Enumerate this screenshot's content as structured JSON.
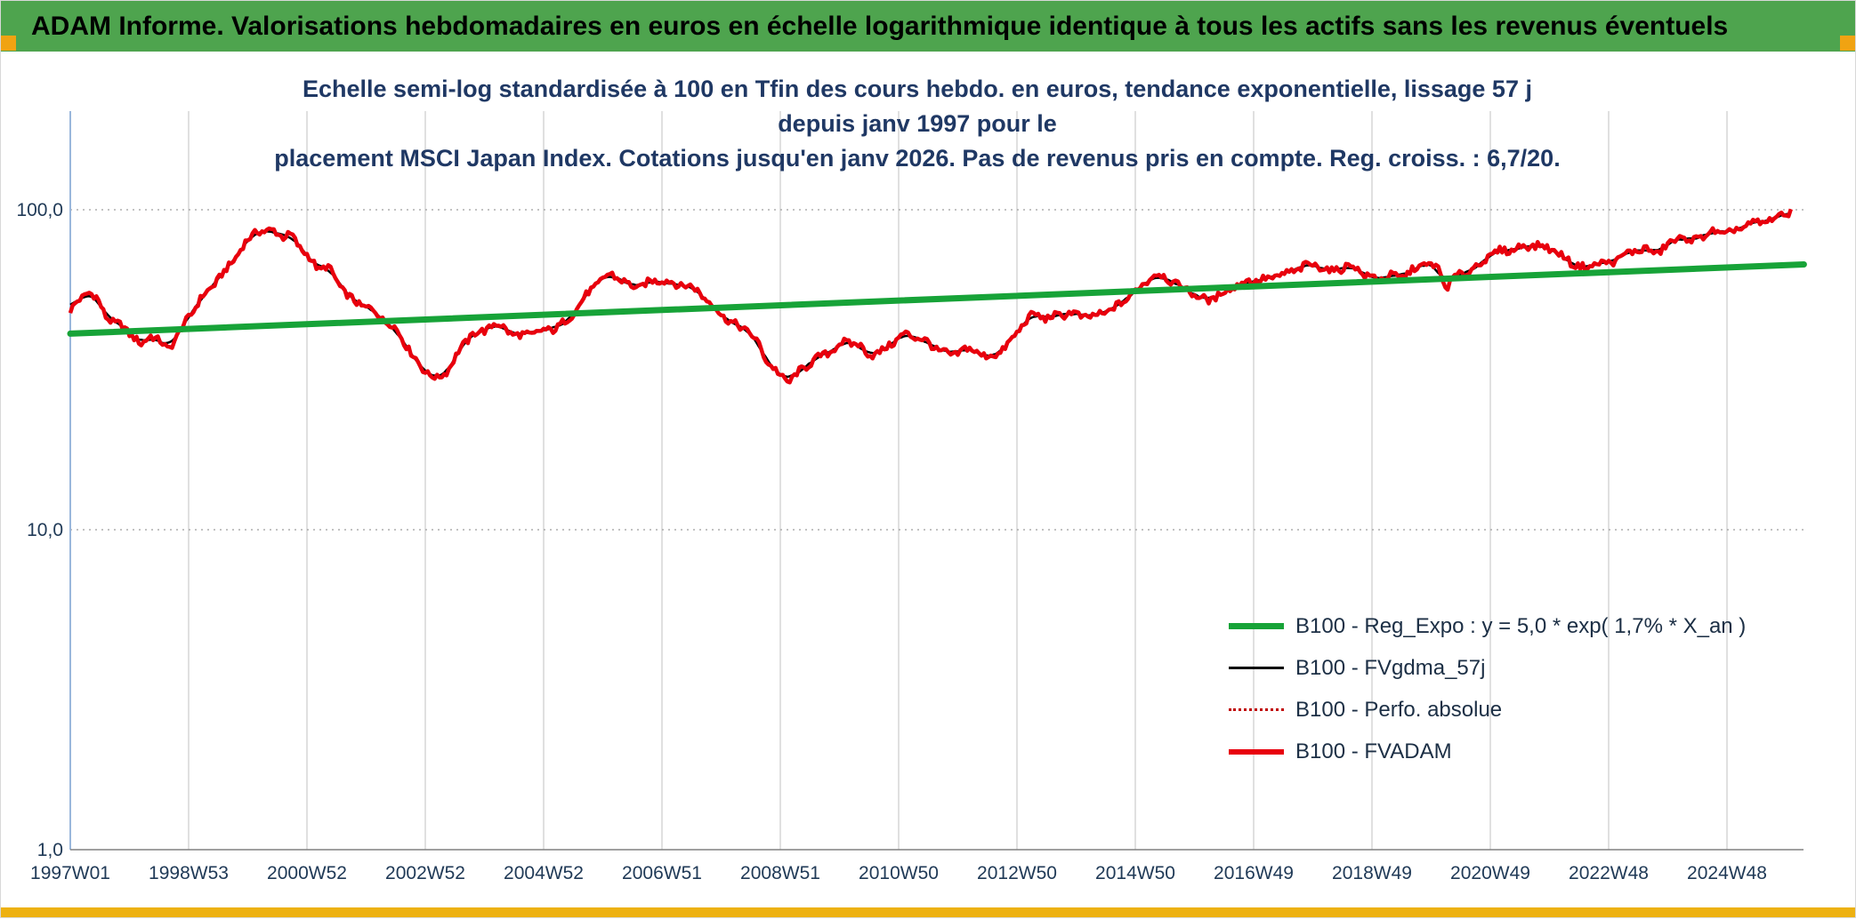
{
  "header": {
    "title": "ADAM Informe. Valorisations hebdomadaires en euros en échelle logarithmique identique à tous les actifs sans les revenus éventuels",
    "bg_color": "#4ea44e",
    "accent_color": "#f0a312"
  },
  "footer": {
    "accent_color": "#edb111"
  },
  "chart_data": {
    "type": "line",
    "title_line1": "Echelle semi-log standardisée à 100 en Tfin des cours hebdo. en euros, tendance exponentielle, lissage 57 j depuis janv 1997 pour le",
    "title_line2": "placement MSCI Japan Index. Cotations jusqu'en janv 2026. Pas de revenus pris en compte. Reg. croiss. : 6,7/20.",
    "x_axis": {
      "tick_labels": [
        "1997W01",
        "1998W53",
        "2000W52",
        "2002W52",
        "2004W52",
        "2006W51",
        "2008W51",
        "2010W50",
        "2012W50",
        "2014W50",
        "2016W49",
        "2018W49",
        "2020W49",
        "2022W48",
        "2024W48"
      ],
      "tick_years": [
        1997,
        1999,
        2001,
        2003,
        2005,
        2007,
        2009,
        2011,
        2013,
        2015,
        2017,
        2019,
        2021,
        2023,
        2025
      ]
    },
    "y_axis": {
      "scale": "log",
      "tick_labels": [
        "100,0",
        "10,0",
        "1,0"
      ],
      "tick_values": [
        100,
        10,
        1
      ],
      "range": [
        1,
        200
      ]
    },
    "x_range": [
      1997.0,
      2026.4
    ],
    "grid": {
      "vertical": true,
      "horizontal_dashed_at": [
        100,
        10
      ]
    },
    "legend_position": "bottom-right-inside",
    "series": [
      {
        "name": "B100 - Reg_Expo : y = 5,0 * exp( 1,7% *  X_an )",
        "type": "trend",
        "color": "#17a338",
        "width": 7,
        "points": [
          [
            1997.0,
            41.0
          ],
          [
            2026.3,
            67.5
          ]
        ]
      },
      {
        "name": "B100 - FVgdma_57j",
        "type": "smoothed",
        "color": "#000000",
        "width": 2.5,
        "derived_from": "B100 - FVADAM",
        "window_days": 57
      },
      {
        "name": "B100 - Perfo. absolue",
        "type": "dotted",
        "color": "#c00000",
        "width": 2,
        "same_as": "B100 - FVADAM"
      },
      {
        "name": "B100 - FVADAM",
        "type": "main",
        "color": "#e8000d",
        "width": 4.5,
        "points": [
          [
            1997.0,
            48
          ],
          [
            1997.15,
            52
          ],
          [
            1997.3,
            56
          ],
          [
            1997.45,
            53
          ],
          [
            1997.6,
            47
          ],
          [
            1997.75,
            44
          ],
          [
            1997.9,
            43
          ],
          [
            1998.05,
            40
          ],
          [
            1998.2,
            37.5
          ],
          [
            1998.35,
            41
          ],
          [
            1998.5,
            39
          ],
          [
            1998.65,
            37
          ],
          [
            1998.8,
            40
          ],
          [
            1999.0,
            46
          ],
          [
            1999.2,
            52
          ],
          [
            1999.4,
            58
          ],
          [
            1999.6,
            64
          ],
          [
            1999.8,
            72
          ],
          [
            2000.0,
            80
          ],
          [
            2000.15,
            86
          ],
          [
            2000.3,
            84
          ],
          [
            2000.45,
            87
          ],
          [
            2000.6,
            82
          ],
          [
            2000.75,
            84
          ],
          [
            2000.9,
            76
          ],
          [
            2001.05,
            70
          ],
          [
            2001.2,
            65
          ],
          [
            2001.35,
            66
          ],
          [
            2001.5,
            60
          ],
          [
            2001.65,
            55
          ],
          [
            2001.8,
            52
          ],
          [
            2002.0,
            50
          ],
          [
            2002.15,
            48
          ],
          [
            2002.3,
            45
          ],
          [
            2002.45,
            43
          ],
          [
            2002.6,
            40
          ],
          [
            2002.75,
            36
          ],
          [
            2002.9,
            33
          ],
          [
            2003.05,
            31
          ],
          [
            2003.2,
            29.5
          ],
          [
            2003.35,
            31
          ],
          [
            2003.5,
            34
          ],
          [
            2003.65,
            38
          ],
          [
            2003.8,
            41
          ],
          [
            2004.0,
            42
          ],
          [
            2004.15,
            44.5
          ],
          [
            2004.3,
            43
          ],
          [
            2004.45,
            41
          ],
          [
            2004.6,
            40
          ],
          [
            2004.8,
            41
          ],
          [
            2005.0,
            42
          ],
          [
            2005.2,
            43
          ],
          [
            2005.4,
            45
          ],
          [
            2005.6,
            50
          ],
          [
            2005.8,
            56
          ],
          [
            2006.0,
            61
          ],
          [
            2006.15,
            63.5
          ],
          [
            2006.3,
            61
          ],
          [
            2006.45,
            58
          ],
          [
            2006.6,
            57
          ],
          [
            2006.8,
            59
          ],
          [
            2007.0,
            60.5
          ],
          [
            2007.2,
            59
          ],
          [
            2007.4,
            58.5
          ],
          [
            2007.6,
            56
          ],
          [
            2007.8,
            51
          ],
          [
            2008.0,
            47
          ],
          [
            2008.2,
            44
          ],
          [
            2008.4,
            43
          ],
          [
            2008.6,
            39
          ],
          [
            2008.8,
            33
          ],
          [
            2009.0,
            30
          ],
          [
            2009.15,
            29
          ],
          [
            2009.3,
            31
          ],
          [
            2009.5,
            33.5
          ],
          [
            2009.7,
            35
          ],
          [
            2009.9,
            36.5
          ],
          [
            2010.1,
            38.5
          ],
          [
            2010.3,
            38
          ],
          [
            2010.5,
            35.5
          ],
          [
            2010.7,
            36
          ],
          [
            2010.9,
            38.5
          ],
          [
            2011.1,
            40.5
          ],
          [
            2011.3,
            40
          ],
          [
            2011.5,
            38.5
          ],
          [
            2011.7,
            36.5
          ],
          [
            2011.9,
            35
          ],
          [
            2012.1,
            36.5
          ],
          [
            2012.3,
            36
          ],
          [
            2012.5,
            34.5
          ],
          [
            2012.7,
            36
          ],
          [
            2012.9,
            39
          ],
          [
            2013.1,
            44
          ],
          [
            2013.3,
            47
          ],
          [
            2013.5,
            45.5
          ],
          [
            2013.7,
            47
          ],
          [
            2013.9,
            48
          ],
          [
            2014.1,
            46.5
          ],
          [
            2014.3,
            46
          ],
          [
            2014.5,
            47.5
          ],
          [
            2014.7,
            50
          ],
          [
            2014.9,
            54
          ],
          [
            2015.1,
            58
          ],
          [
            2015.3,
            62.5
          ],
          [
            2015.5,
            61.5
          ],
          [
            2015.7,
            58
          ],
          [
            2015.9,
            56.5
          ],
          [
            2016.1,
            53
          ],
          [
            2016.3,
            52.5
          ],
          [
            2016.5,
            55
          ],
          [
            2016.7,
            57.5
          ],
          [
            2016.9,
            60
          ],
          [
            2017.1,
            60.5
          ],
          [
            2017.3,
            61.5
          ],
          [
            2017.5,
            62.5
          ],
          [
            2017.7,
            64
          ],
          [
            2017.9,
            67
          ],
          [
            2018.1,
            67.5
          ],
          [
            2018.3,
            64.5
          ],
          [
            2018.5,
            66
          ],
          [
            2018.7,
            66.5
          ],
          [
            2018.9,
            61.5
          ],
          [
            2019.1,
            61
          ],
          [
            2019.3,
            62.5
          ],
          [
            2019.5,
            62
          ],
          [
            2019.7,
            64.5
          ],
          [
            2019.9,
            67.5
          ],
          [
            2020.1,
            66
          ],
          [
            2020.25,
            57.5
          ],
          [
            2020.4,
            62
          ],
          [
            2020.6,
            64
          ],
          [
            2020.8,
            67
          ],
          [
            2021.0,
            71.5
          ],
          [
            2021.2,
            74.5
          ],
          [
            2021.4,
            75.5
          ],
          [
            2021.6,
            78
          ],
          [
            2021.8,
            77
          ],
          [
            2022.0,
            75.5
          ],
          [
            2022.2,
            71.5
          ],
          [
            2022.4,
            68
          ],
          [
            2022.6,
            66
          ],
          [
            2022.8,
            68.5
          ],
          [
            2023.0,
            67.5
          ],
          [
            2023.2,
            70.5
          ],
          [
            2023.4,
            74
          ],
          [
            2023.6,
            76
          ],
          [
            2023.8,
            73.5
          ],
          [
            2024.0,
            77.5
          ],
          [
            2024.2,
            81.5
          ],
          [
            2024.4,
            79.5
          ],
          [
            2024.6,
            83.5
          ],
          [
            2024.8,
            86
          ],
          [
            2025.0,
            84
          ],
          [
            2025.2,
            87
          ],
          [
            2025.4,
            89.5
          ],
          [
            2025.6,
            91.5
          ],
          [
            2025.8,
            94.5
          ],
          [
            2026.0,
            98
          ],
          [
            2026.1,
            100
          ]
        ]
      }
    ]
  }
}
